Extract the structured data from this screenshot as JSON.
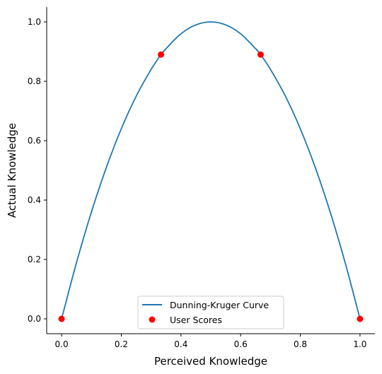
{
  "chart_data": {
    "type": "line",
    "title": "",
    "xlabel": "Perceived Knowledge",
    "ylabel": "Actual Knowledge",
    "xlim": [
      -0.05,
      1.05
    ],
    "ylim": [
      -0.05,
      1.05
    ],
    "xticks": [
      "0.0",
      "0.2",
      "0.4",
      "0.6",
      "0.8",
      "1.0"
    ],
    "yticks": [
      "0.0",
      "0.2",
      "0.4",
      "0.6",
      "0.8",
      "1.0"
    ],
    "grid": false,
    "legend_position": "bottom-center",
    "series": [
      {
        "name": "Dunning-Kruger Curve",
        "kind": "line",
        "color": "#1f77b4",
        "x": [
          0.0,
          0.05,
          0.1,
          0.15,
          0.2,
          0.25,
          0.3,
          0.333,
          0.35,
          0.4,
          0.45,
          0.5,
          0.55,
          0.6,
          0.65,
          0.667,
          0.7,
          0.75,
          0.8,
          0.85,
          0.9,
          0.95,
          1.0
        ],
        "y": [
          0.0,
          0.19,
          0.36,
          0.51,
          0.64,
          0.75,
          0.84,
          0.89,
          0.91,
          0.96,
          0.99,
          1.0,
          0.99,
          0.96,
          0.91,
          0.89,
          0.84,
          0.75,
          0.64,
          0.51,
          0.36,
          0.19,
          0.0
        ]
      },
      {
        "name": "User Scores",
        "kind": "scatter",
        "color": "#ff0000",
        "x": [
          0.0,
          0.333,
          0.667,
          1.0
        ],
        "y": [
          0.0,
          0.89,
          0.89,
          0.0
        ]
      }
    ]
  }
}
